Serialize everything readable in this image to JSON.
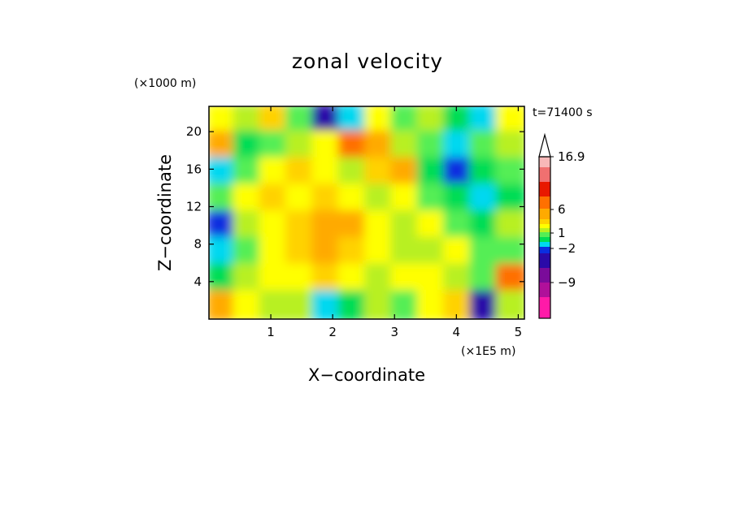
{
  "chart_data": {
    "type": "heatmap",
    "title": "zonal velocity",
    "xlabel": "X−coordinate",
    "ylabel": "Z−coordinate",
    "x_unit": "(×1E5 m)",
    "y_unit": "(×1000 m)",
    "time_label": "t=71400 s",
    "xlim": [
      0,
      5.1
    ],
    "ylim": [
      0,
      22.7
    ],
    "x_ticks": [
      {
        "value": 1,
        "label": "1"
      },
      {
        "value": 2,
        "label": "2"
      },
      {
        "value": 3,
        "label": "3"
      },
      {
        "value": 4,
        "label": "4"
      },
      {
        "value": 5,
        "label": "5"
      }
    ],
    "y_ticks": [
      {
        "value": 4,
        "label": "4"
      },
      {
        "value": 8,
        "label": "8"
      },
      {
        "value": 12,
        "label": "12"
      },
      {
        "value": 16,
        "label": "16"
      },
      {
        "value": 20,
        "label": "20"
      }
    ],
    "colorbar": {
      "max_label": "16.9",
      "labels": [
        "16.9",
        "6",
        "1",
        "−2",
        "−9"
      ],
      "levels": [
        {
          "color": "#ff1aa8"
        },
        {
          "color": "#b0109a"
        },
        {
          "color": "#7a0b9a"
        },
        {
          "color": "#2a0aa8"
        },
        {
          "color": "#0b2ee0"
        },
        {
          "color": "#00d8f0"
        },
        {
          "color": "#00dd55"
        },
        {
          "color": "#55ee55"
        },
        {
          "color": "#b8f020"
        },
        {
          "color": "#ffff00"
        },
        {
          "color": "#ffd200"
        },
        {
          "color": "#ffaa00"
        },
        {
          "color": "#ff7000"
        },
        {
          "color": "#e81800"
        },
        {
          "color": "#f07070"
        },
        {
          "color": "#f8b8b8"
        }
      ]
    },
    "field": {
      "nx": 12,
      "nz": 8,
      "z_rows_top_to_bottom": [
        [
          9,
          8,
          10,
          7,
          3,
          5,
          9,
          7,
          8,
          6,
          5,
          9
        ],
        [
          11,
          6,
          7,
          8,
          9,
          12,
          11,
          8,
          7,
          5,
          7,
          8
        ],
        [
          5,
          7,
          9,
          10,
          9,
          8,
          10,
          11,
          6,
          4,
          6,
          7
        ],
        [
          7,
          9,
          10,
          9,
          10,
          9,
          8,
          9,
          7,
          6,
          5,
          6
        ],
        [
          4,
          8,
          9,
          10,
          11,
          11,
          9,
          8,
          9,
          7,
          6,
          8
        ],
        [
          5,
          7,
          9,
          10,
          11,
          10,
          9,
          8,
          8,
          9,
          7,
          7
        ],
        [
          6,
          8,
          9,
          9,
          10,
          9,
          8,
          9,
          9,
          8,
          7,
          12
        ],
        [
          11,
          9,
          8,
          8,
          5,
          6,
          8,
          7,
          9,
          10,
          3,
          8
        ]
      ]
    }
  }
}
